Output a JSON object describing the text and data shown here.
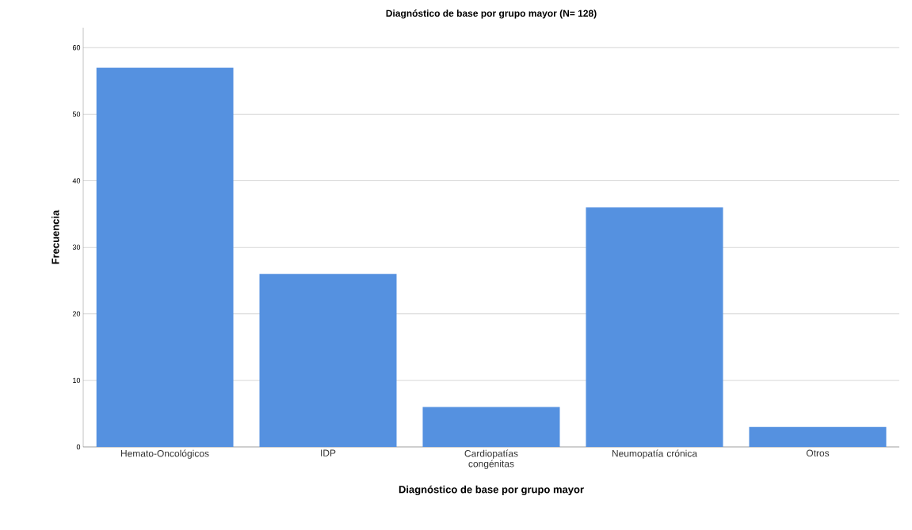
{
  "chart_data": {
    "type": "bar",
    "title": "Diagnóstico de base por grupo mayor (N= 128)",
    "xlabel": "Diagnóstico de base por grupo mayor",
    "ylabel": "Frecuencia",
    "categories": [
      "Hemato-Oncológicos",
      "IDP",
      "Cardiopatías congénitas",
      "Neumopatía crónica",
      "Otros"
    ],
    "values": [
      57,
      26,
      6,
      36,
      3
    ],
    "color": "#5591e0",
    "ylim": [
      0,
      63
    ],
    "yticks": [
      0,
      10,
      20,
      30,
      40,
      50,
      60
    ],
    "grid": "y"
  }
}
